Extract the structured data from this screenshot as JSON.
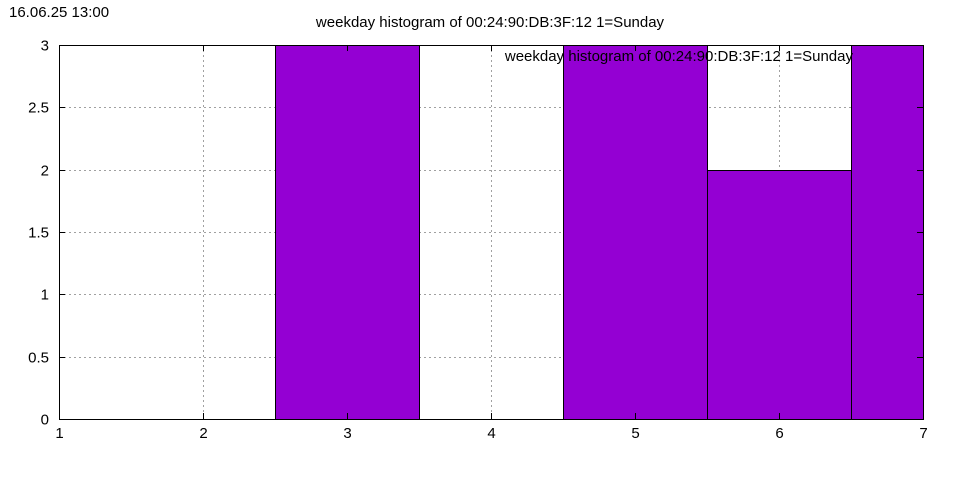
{
  "timestamp": "16.06.25 13:00",
  "chart_data": {
    "type": "bar",
    "title": "weekday histogram of 00:24:90:DB:3F:12 1=Sunday",
    "legend": {
      "label": "weekday histogram of 00:24:90:DB:3F:12 1=Sunday",
      "placement": "top-right"
    },
    "xlabel": "",
    "ylabel": "",
    "xlim": [
      1,
      7
    ],
    "ylim": [
      0,
      3
    ],
    "x_ticks": [
      "1",
      "2",
      "3",
      "4",
      "5",
      "6",
      "7"
    ],
    "y_ticks": [
      "0",
      "0.5",
      "1",
      "1.5",
      "2",
      "2.5",
      "3"
    ],
    "bar_width": 1,
    "bars": [
      {
        "x": 3,
        "value": 3
      },
      {
        "x": 5,
        "value": 3
      },
      {
        "x": 6,
        "value": 2
      },
      {
        "x": 7,
        "value": 3
      }
    ],
    "bar_color": "#9400d3",
    "grid": true
  }
}
